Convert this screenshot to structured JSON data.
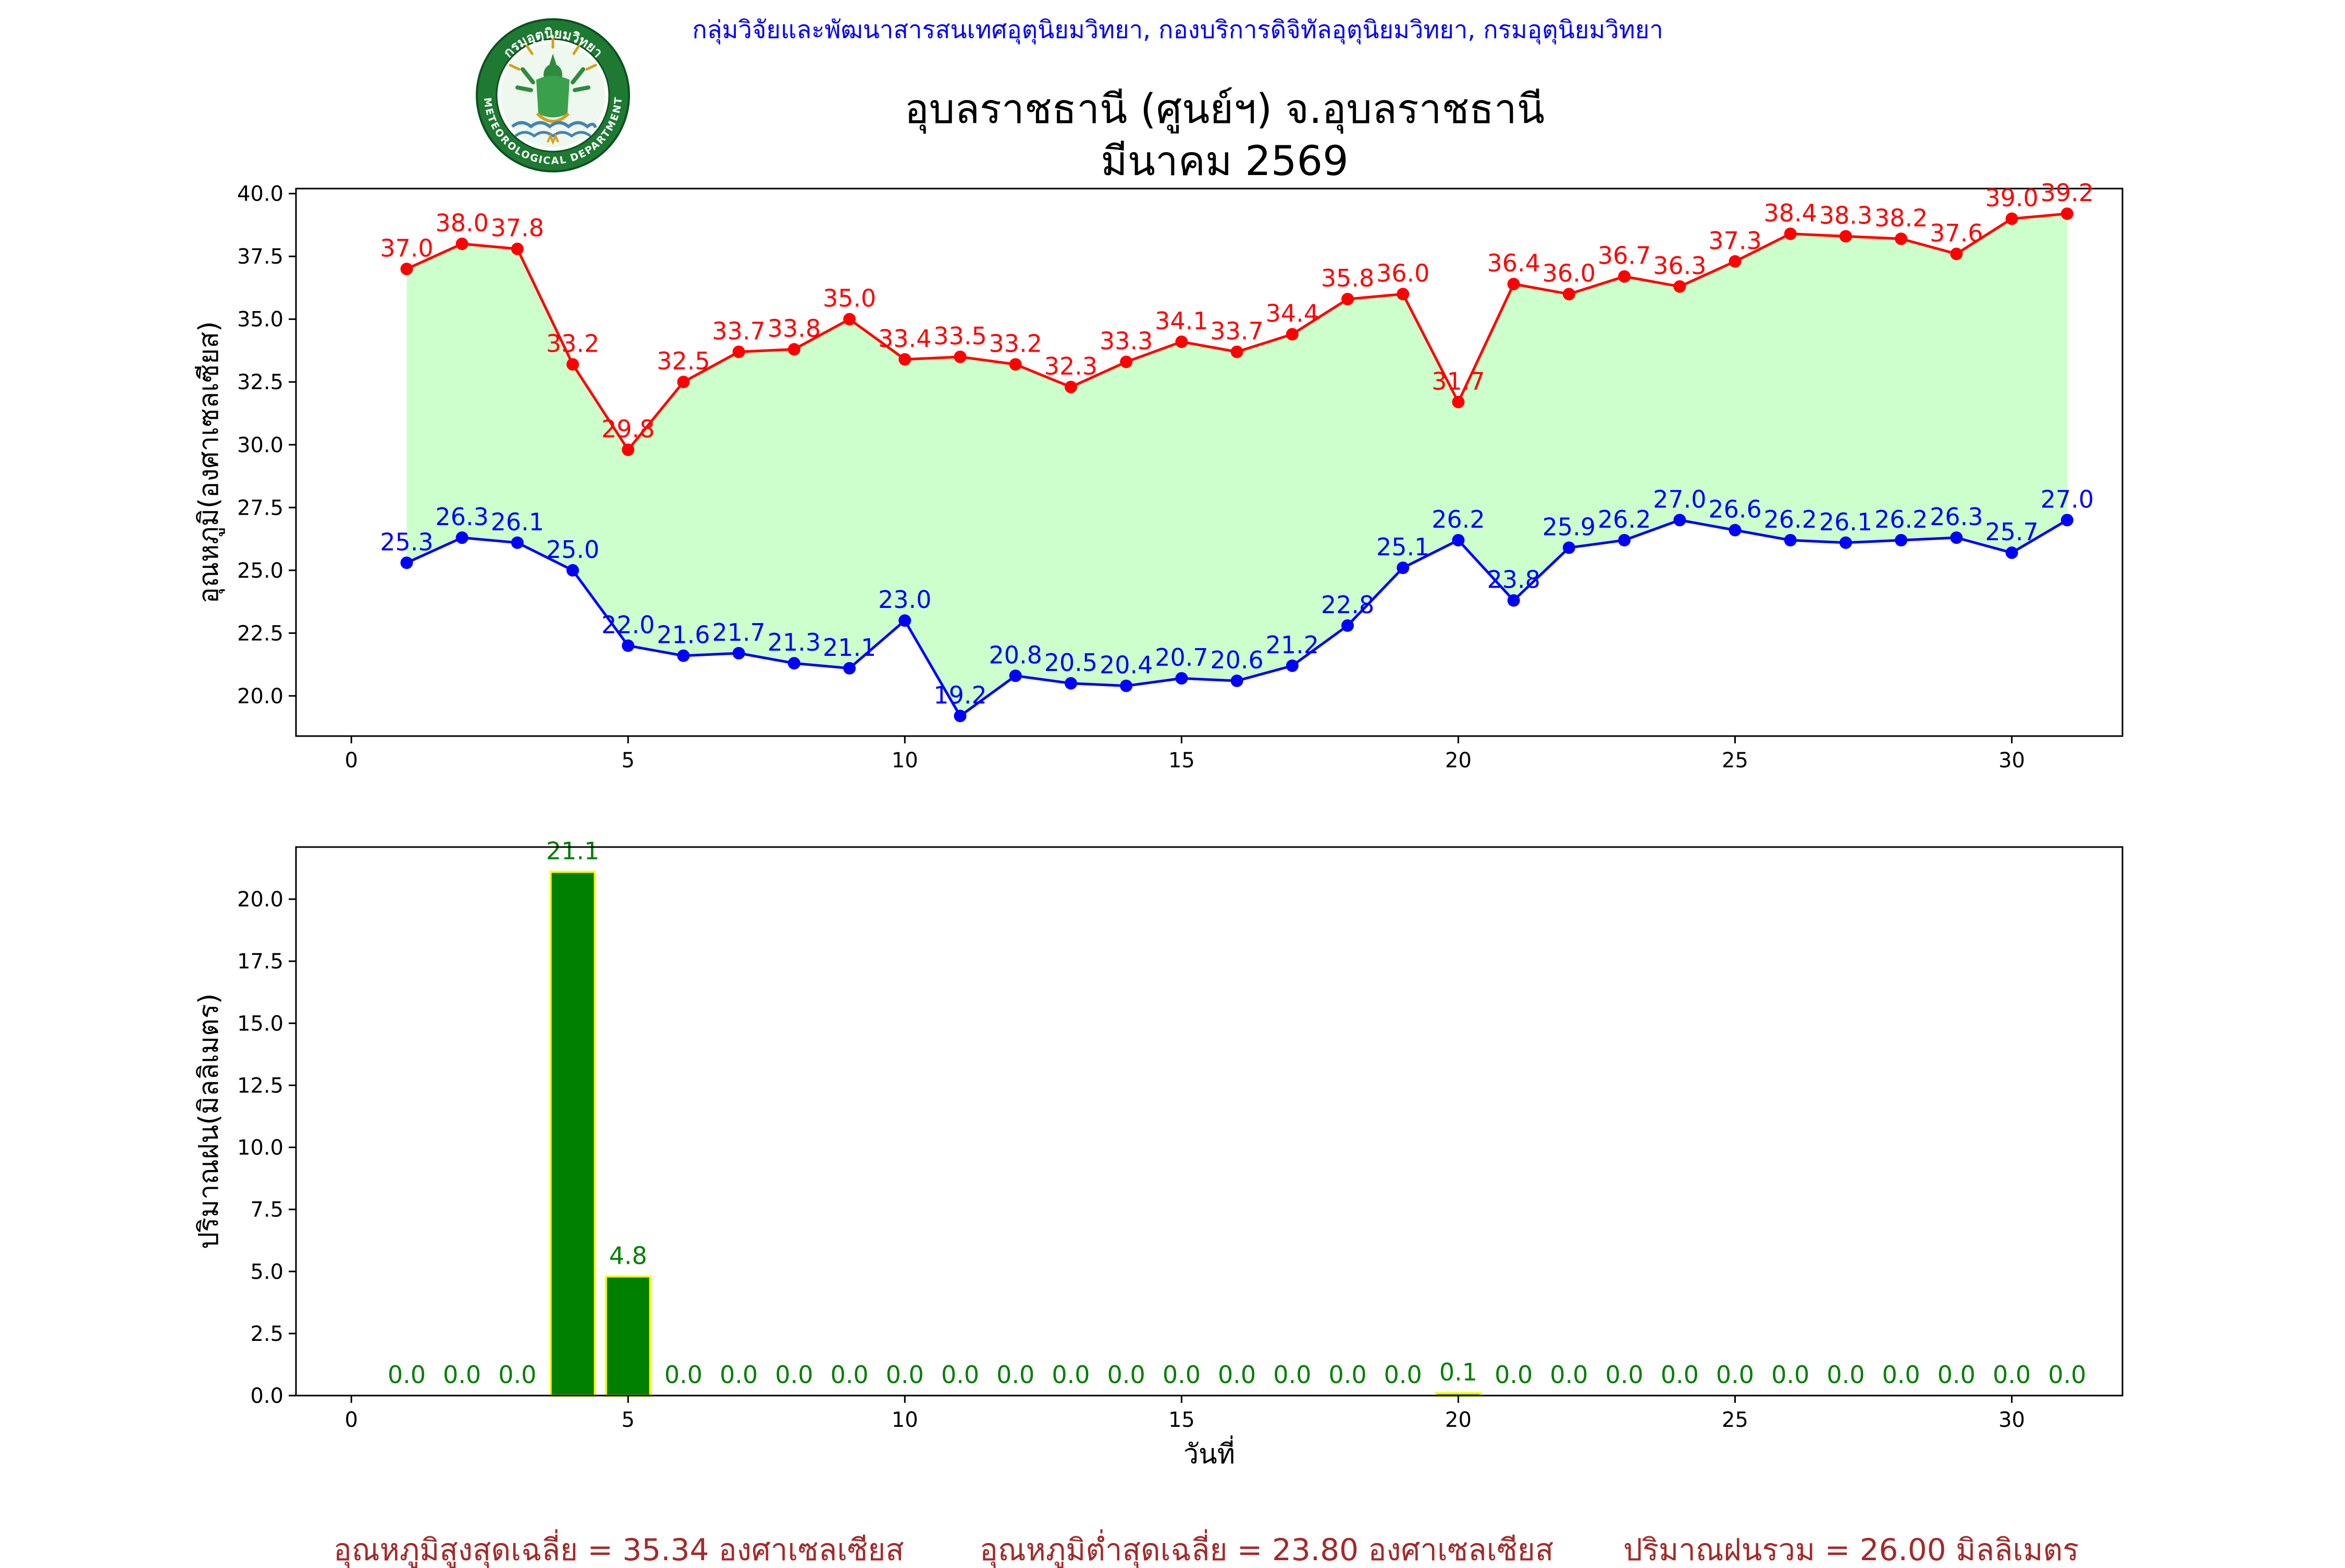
{
  "header": {
    "credit": "กลุ่มวิจัยและพัฒนาสารสนเทศอุตุนิยมวิทยา, กองบริการดิจิทัลอุตุนิยมวิทยา, กรมอุตุนิยมวิทยา",
    "title_line1": "อุบลราชธานี (ศูนย์ฯ) จ.อุบลราชธานี",
    "title_line2": "มีนาคม 2569",
    "logo_text_top": "กรมอุตุนิยมวิทยา",
    "logo_text_bottom": "METEOROLOGICAL DEPARTMENT"
  },
  "colors": {
    "max_line": "#ff0000",
    "min_line": "#0000ff",
    "fill": "#ccffcc",
    "bar_fill": "#008000",
    "bar_edge": "#ffff00",
    "bar_label": "#008000",
    "stats": "#a52a2a",
    "credit": "#0000ff"
  },
  "chart_data": [
    {
      "type": "line",
      "ylabel": "อุณหภูมิ(องศาเซลเซียส)",
      "xlim": [
        -1,
        32
      ],
      "ylim": [
        18.4,
        40.2
      ],
      "xticks": [
        0,
        5,
        10,
        15,
        20,
        25,
        30
      ],
      "yticks": [
        20.0,
        22.5,
        25.0,
        27.5,
        30.0,
        32.5,
        35.0,
        37.5,
        40.0
      ],
      "x": [
        1,
        2,
        3,
        4,
        5,
        6,
        7,
        8,
        9,
        10,
        11,
        12,
        13,
        14,
        15,
        16,
        17,
        18,
        19,
        20,
        21,
        22,
        23,
        24,
        25,
        26,
        27,
        28,
        29,
        30,
        31
      ],
      "fill_between": true,
      "series": [
        {
          "key": "max",
          "color": "#ff0000",
          "values": [
            37.0,
            38.0,
            37.8,
            33.2,
            29.8,
            32.5,
            33.7,
            33.8,
            35.0,
            33.4,
            33.5,
            33.2,
            32.3,
            33.3,
            34.1,
            33.7,
            34.4,
            35.8,
            36.0,
            31.7,
            36.4,
            36.0,
            36.7,
            36.3,
            37.3,
            38.4,
            38.3,
            38.2,
            37.6,
            39.0,
            39.2
          ]
        },
        {
          "key": "min",
          "color": "#0000ff",
          "values": [
            25.3,
            26.3,
            26.1,
            25.0,
            22.0,
            21.6,
            21.7,
            21.3,
            21.1,
            23.0,
            19.2,
            20.8,
            20.5,
            20.4,
            20.7,
            20.6,
            21.2,
            22.8,
            25.1,
            26.2,
            23.8,
            25.9,
            26.2,
            27.0,
            26.6,
            26.2,
            26.1,
            26.2,
            26.3,
            25.7,
            27.0
          ]
        }
      ]
    },
    {
      "type": "bar",
      "ylabel": "ปริมาณฝน(มิลลิเมตร)",
      "xlabel": "วันที่",
      "xlim": [
        -1,
        32
      ],
      "ylim": [
        0,
        22.1
      ],
      "xticks": [
        0,
        5,
        10,
        15,
        20,
        25,
        30
      ],
      "yticks": [
        0.0,
        2.5,
        5.0,
        7.5,
        10.0,
        12.5,
        15.0,
        17.5,
        20.0
      ],
      "x": [
        1,
        2,
        3,
        4,
        5,
        6,
        7,
        8,
        9,
        10,
        11,
        12,
        13,
        14,
        15,
        16,
        17,
        18,
        19,
        20,
        21,
        22,
        23,
        24,
        25,
        26,
        27,
        28,
        29,
        30,
        31
      ],
      "values": [
        0.0,
        0.0,
        0.0,
        21.1,
        4.8,
        0.0,
        0.0,
        0.0,
        0.0,
        0.0,
        0.0,
        0.0,
        0.0,
        0.0,
        0.0,
        0.0,
        0.0,
        0.0,
        0.0,
        0.1,
        0.0,
        0.0,
        0.0,
        0.0,
        0.0,
        0.0,
        0.0,
        0.0,
        0.0,
        0.0,
        0.0
      ]
    }
  ],
  "stats": {
    "avg_max": "อุณหภูมิสูงสุดเฉลี่ย = 35.34 องศาเซลเซียส",
    "avg_min": "อุณหภูมิต่ำสุดเฉลี่ย = 23.80 องศาเซลเซียส",
    "total_rain": "ปริมาณฝนรวม = 26.00 มิลลิเมตร"
  }
}
